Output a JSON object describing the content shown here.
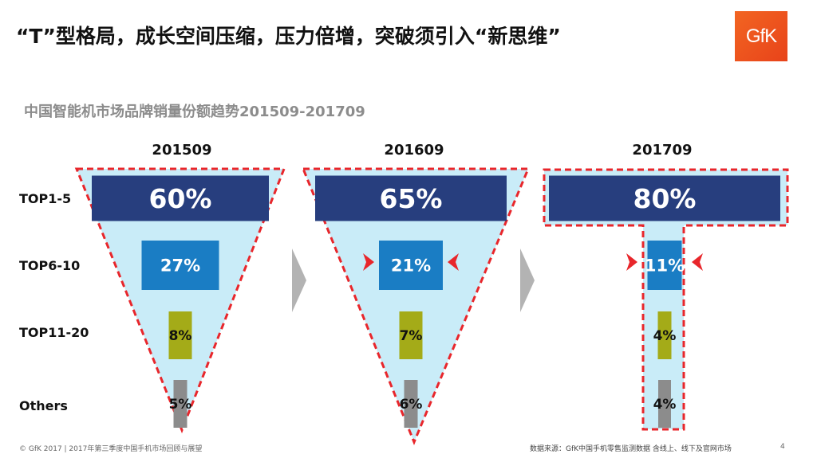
{
  "slide": {
    "title": "“T”型格局，成长空间压缩，压力倍增，突破须引入“新思维”",
    "logo_text": "GfK",
    "subtitle": "中国智能机市场品牌销量份额趋势201509-201709"
  },
  "footer": {
    "left": "© GfK 2017 | 2017年第三季度中国手机市场回顾与展望",
    "right": "数据来源：GfK中国手机零售监测数据 含线上、线下及官网市场",
    "page": "4"
  },
  "colors": {
    "funnel_fill": "#c9ecf8",
    "dash_outline": "#e8262b",
    "top1_5": "#273e7e",
    "top6_10": "#1a7dc4",
    "top11_20": "#a4ab18",
    "others": "#8c8c8c",
    "arrow": "#8c8c8c",
    "squeeze_arrow": "#e8262b"
  },
  "chart_data": {
    "type": "table",
    "title": "中国智能机市场品牌销量份额趋势201509-201709",
    "categories": [
      "TOP1-5",
      "TOP6-10",
      "TOP11-20",
      "Others"
    ],
    "periods": [
      "201509",
      "201609",
      "201709"
    ],
    "series": [
      {
        "name": "201509",
        "values": [
          60,
          27,
          8,
          5
        ],
        "labels": [
          "60%",
          "27%",
          "8%",
          "5%"
        ]
      },
      {
        "name": "201609",
        "values": [
          65,
          21,
          7,
          6
        ],
        "labels": [
          "65%",
          "21%",
          "7%",
          "6%"
        ]
      },
      {
        "name": "201709",
        "values": [
          80,
          11,
          4,
          4
        ],
        "labels": [
          "80%",
          "11%",
          "4%",
          "4%"
        ]
      }
    ],
    "unit": "%"
  }
}
